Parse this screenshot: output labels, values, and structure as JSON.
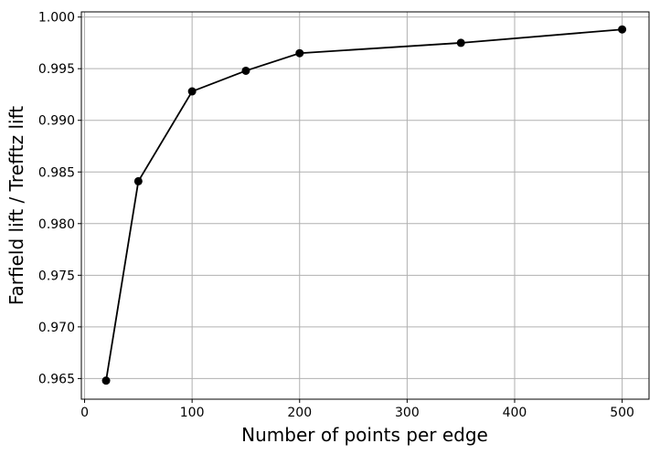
{
  "chart_data": {
    "type": "line",
    "xlabel": "Number of points per edge",
    "ylabel": "Farfield lift / Trefftz lift",
    "xlim": [
      -3,
      525
    ],
    "ylim": [
      0.963,
      1.0005
    ],
    "xticks": [
      0,
      100,
      200,
      300,
      400,
      500
    ],
    "yticks": [
      0.965,
      0.97,
      0.975,
      0.98,
      0.985,
      0.99,
      0.995,
      1.0
    ],
    "grid": true,
    "series": [
      {
        "x": [
          20,
          50,
          100,
          150,
          200,
          350,
          500
        ],
        "values": [
          0.9648,
          0.9841,
          0.9928,
          0.9948,
          0.9965,
          0.9975,
          0.9988
        ],
        "color": "#000000",
        "marker": "circle"
      }
    ]
  }
}
